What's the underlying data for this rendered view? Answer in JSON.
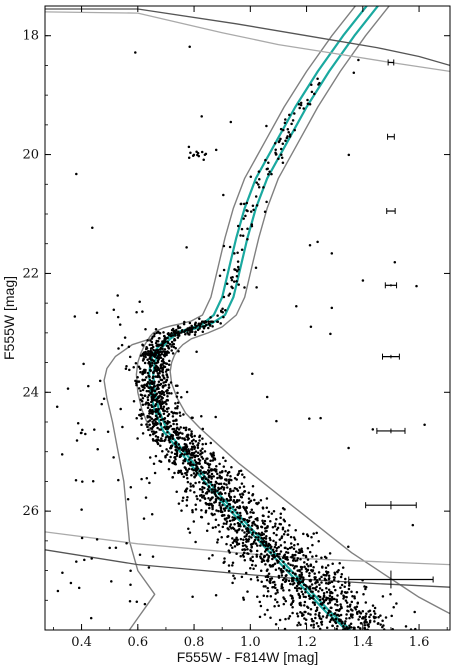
{
  "chart_data": {
    "type": "scatter",
    "title": "",
    "xlabel": "F555W - F814W [mag]",
    "ylabel": "F555W [mag]",
    "xlim": [
      0.27,
      1.71
    ],
    "ylim": [
      28.0,
      17.5
    ],
    "y_inverted": true,
    "grid": false,
    "legend": "none",
    "x_ticks": [
      0.4,
      0.6,
      0.8,
      1.0,
      1.2,
      1.4,
      1.6
    ],
    "x_tick_labels": [
      "0.4",
      "0.6",
      "0.8",
      "1.0",
      "1.2",
      "1.4",
      "1.6"
    ],
    "y_ticks": [
      18,
      20,
      22,
      24,
      26
    ],
    "y_tick_labels": [
      "18",
      "20",
      "22",
      "24",
      "26"
    ],
    "colors": {
      "points": "#000000",
      "ridge_line": "#1aa9a0",
      "envelope": "#808080",
      "dark_boundary": "#555555",
      "light_boundary": "#aaaaaa",
      "error_bars": "#000000"
    },
    "series": [
      {
        "role": "ridge-line",
        "x": [
          1.43,
          1.33,
          1.24,
          1.16,
          1.09,
          1.02,
          0.98,
          0.95,
          0.93,
          0.915,
          0.9,
          0.87,
          0.83,
          0.79,
          0.76,
          0.73,
          0.715,
          0.7,
          0.69,
          0.68,
          0.67,
          0.655,
          0.645,
          0.64,
          0.645,
          0.66,
          0.69,
          0.75,
          0.82,
          0.88,
          0.97,
          1.05,
          1.12,
          1.18,
          1.23,
          1.27,
          1.32,
          1.36,
          1.39
        ],
        "y": [
          17.4,
          18.0,
          18.6,
          19.2,
          19.8,
          20.4,
          20.9,
          21.4,
          21.8,
          22.1,
          22.4,
          22.7,
          22.85,
          22.92,
          22.96,
          23.0,
          23.05,
          23.1,
          23.15,
          23.2,
          23.25,
          23.35,
          23.5,
          23.7,
          24.0,
          24.3,
          24.65,
          25.0,
          25.4,
          25.75,
          26.2,
          26.6,
          26.95,
          27.25,
          27.5,
          27.7,
          27.9,
          28.1,
          28.3
        ]
      },
      {
        "role": "ridge-line",
        "x": [
          1.47,
          1.37,
          1.28,
          1.2,
          1.13,
          1.06,
          1.02,
          0.99,
          0.97,
          0.955,
          0.94,
          0.91,
          0.86,
          0.81,
          0.78,
          0.745,
          0.73,
          0.715,
          0.705,
          0.695,
          0.685,
          0.67,
          0.66,
          0.655,
          0.66,
          0.675,
          0.705,
          0.765,
          0.835,
          0.895,
          0.985,
          1.065,
          1.135,
          1.195,
          1.245,
          1.285,
          1.335,
          1.375,
          1.405
        ],
        "y": [
          17.4,
          18.0,
          18.6,
          19.2,
          19.8,
          20.4,
          20.9,
          21.4,
          21.8,
          22.1,
          22.4,
          22.7,
          22.85,
          22.92,
          22.96,
          23.0,
          23.05,
          23.1,
          23.15,
          23.2,
          23.25,
          23.35,
          23.5,
          23.7,
          24.0,
          24.3,
          24.65,
          25.0,
          25.4,
          25.75,
          26.2,
          26.6,
          26.95,
          27.25,
          27.5,
          27.7,
          27.9,
          28.1,
          28.3
        ]
      },
      {
        "role": "envelope",
        "x": [
          1.39,
          1.29,
          1.2,
          1.12,
          1.05,
          0.98,
          0.94,
          0.91,
          0.89,
          0.875,
          0.86,
          0.83,
          0.79,
          0.75,
          0.72,
          0.69,
          0.67,
          0.655,
          0.645,
          0.635,
          0.625,
          0.61,
          0.6,
          0.595,
          0.6,
          0.615,
          0.645
        ],
        "y": [
          17.4,
          18.0,
          18.6,
          19.2,
          19.8,
          20.4,
          20.9,
          21.4,
          21.8,
          22.1,
          22.4,
          22.7,
          22.8,
          22.85,
          22.88,
          22.92,
          22.96,
          23.0,
          23.05,
          23.12,
          23.2,
          23.35,
          23.5,
          23.7,
          24.0,
          24.3,
          24.65
        ]
      },
      {
        "role": "envelope",
        "x": [
          1.51,
          1.41,
          1.32,
          1.24,
          1.17,
          1.1,
          1.06,
          1.03,
          1.01,
          0.995,
          0.98,
          0.95,
          0.9,
          0.85,
          0.82,
          0.79,
          0.775,
          0.76,
          0.75,
          0.74,
          0.73,
          0.72,
          0.715,
          0.72,
          0.74,
          0.77,
          0.82,
          0.89,
          0.96,
          1.04,
          1.12,
          1.2,
          1.28,
          1.36,
          1.44,
          1.52,
          1.6,
          1.68,
          1.72
        ],
        "y": [
          17.4,
          18.0,
          18.6,
          19.2,
          19.8,
          20.4,
          20.9,
          21.4,
          21.8,
          22.1,
          22.4,
          22.7,
          22.9,
          23.0,
          23.05,
          23.1,
          23.15,
          23.2,
          23.25,
          23.3,
          23.38,
          23.5,
          23.65,
          23.85,
          24.1,
          24.35,
          24.6,
          24.9,
          25.2,
          25.5,
          25.8,
          26.1,
          26.4,
          26.7,
          26.95,
          27.2,
          27.45,
          27.65,
          27.75
        ]
      },
      {
        "role": "envelope",
        "x": [
          0.645,
          0.58,
          0.52,
          0.49,
          0.48,
          0.49,
          0.51,
          0.53,
          0.55,
          0.56,
          0.57,
          0.6,
          0.66,
          0.63,
          0.6,
          0.57
        ],
        "y": [
          23.1,
          23.2,
          23.4,
          23.6,
          23.8,
          24.1,
          24.5,
          25.0,
          25.5,
          26.0,
          26.5,
          27.0,
          27.4,
          27.6,
          27.8,
          28.0
        ]
      },
      {
        "role": "boundary-dark",
        "x": [
          0.27,
          0.6,
          0.95,
          1.2,
          1.45,
          1.6,
          1.71
        ],
        "y": [
          17.55,
          17.55,
          17.8,
          18.0,
          18.2,
          18.35,
          18.5
        ]
      },
      {
        "role": "boundary-dark",
        "x": [
          0.27,
          0.6,
          0.95,
          1.2,
          1.45,
          1.71
        ],
        "y": [
          26.65,
          26.9,
          27.05,
          27.15,
          27.22,
          27.28
        ]
      },
      {
        "role": "boundary-light",
        "x": [
          0.27,
          0.6,
          0.9,
          1.1,
          1.3,
          1.5,
          1.71
        ],
        "y": [
          17.6,
          17.62,
          17.95,
          18.15,
          18.3,
          18.45,
          18.6
        ]
      },
      {
        "role": "boundary-light",
        "x": [
          0.27,
          0.6,
          0.95,
          1.2,
          1.45,
          1.71
        ],
        "y": [
          26.35,
          26.55,
          26.7,
          26.8,
          26.85,
          26.9
        ]
      }
    ],
    "error_bars": [
      {
        "x": 1.5,
        "y": 18.45,
        "xerr": 0.01,
        "yerr": 0.0
      },
      {
        "x": 1.5,
        "y": 19.7,
        "xerr": 0.012,
        "yerr": 0.0
      },
      {
        "x": 1.5,
        "y": 20.95,
        "xerr": 0.015,
        "yerr": 0.0
      },
      {
        "x": 1.5,
        "y": 22.2,
        "xerr": 0.02,
        "yerr": 0.02
      },
      {
        "x": 1.5,
        "y": 23.4,
        "xerr": 0.03,
        "yerr": 0.03
      },
      {
        "x": 1.5,
        "y": 24.65,
        "xerr": 0.05,
        "yerr": 0.04
      },
      {
        "x": 1.5,
        "y": 25.9,
        "xerr": 0.09,
        "yerr": 0.07
      },
      {
        "x": 1.5,
        "y": 27.15,
        "xerr": 0.15,
        "yerr": 0.15
      }
    ]
  }
}
